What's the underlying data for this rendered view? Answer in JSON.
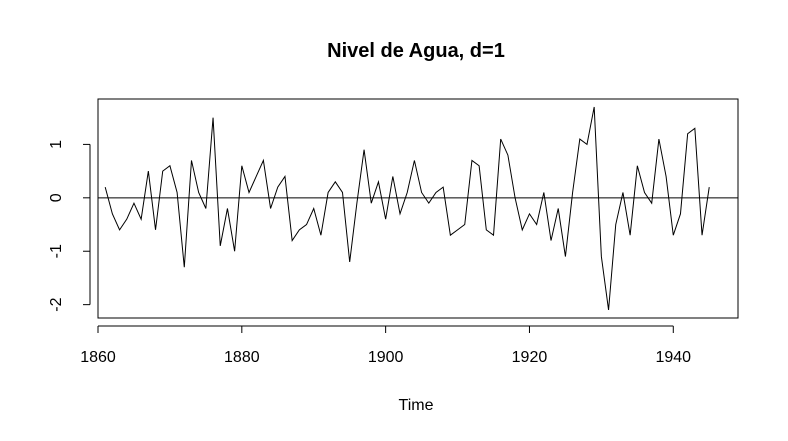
{
  "chart_data": {
    "type": "line",
    "title": "Nivel de Agua, d=1",
    "xlabel": "Time",
    "ylabel": "",
    "xlim": [
      1860,
      1949
    ],
    "ylim": [
      -2.25,
      1.85
    ],
    "x_ticks": [
      1860,
      1880,
      1900,
      1920,
      1940
    ],
    "x_tick_labels": [
      "1860",
      "1880",
      "1900",
      "1920",
      "1940"
    ],
    "y_ticks": [
      -2,
      -1,
      0,
      1
    ],
    "y_tick_labels": [
      "-2",
      "-1",
      "0",
      "1"
    ],
    "grid": false,
    "hline": 0,
    "series": [
      {
        "x_start": 1861,
        "x_step": 1,
        "values": [
          0.2,
          -0.3,
          -0.6,
          -0.4,
          -0.1,
          -0.4,
          0.5,
          -0.6,
          0.5,
          0.6,
          0.1,
          -1.3,
          0.7,
          0.1,
          -0.2,
          1.5,
          -0.9,
          -0.2,
          -1.0,
          0.6,
          0.1,
          0.4,
          0.7,
          -0.2,
          0.2,
          0.4,
          -0.8,
          -0.6,
          -0.5,
          -0.2,
          -0.7,
          0.1,
          0.3,
          0.1,
          -1.2,
          -0.1,
          0.9,
          -0.1,
          0.3,
          -0.4,
          0.4,
          -0.3,
          0.1,
          0.7,
          0.1,
          -0.1,
          0.1,
          0.2,
          -0.7,
          -0.6,
          -0.5,
          0.7,
          0.6,
          -0.6,
          -0.7,
          1.1,
          0.8,
          0.0,
          -0.6,
          -0.3,
          -0.5,
          0.1,
          -0.8,
          -0.2,
          -1.1,
          0.1,
          1.1,
          1.0,
          1.7,
          -1.1,
          -2.1,
          -0.5,
          0.1,
          -0.7,
          0.6,
          0.1,
          -0.1,
          1.1,
          0.4,
          -0.7,
          -0.3,
          1.2,
          1.3,
          -0.7,
          0.2
        ]
      }
    ]
  }
}
